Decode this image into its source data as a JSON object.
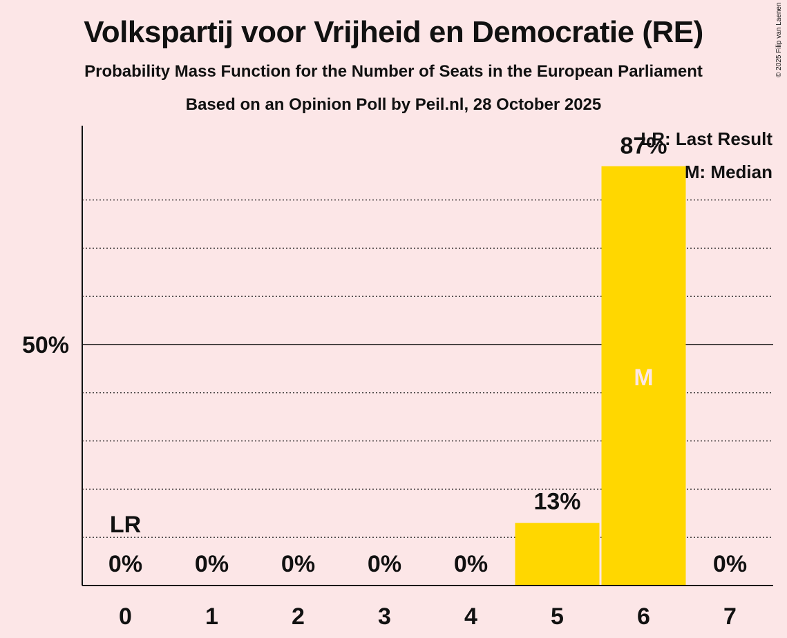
{
  "title": "Volkspartij voor Vrijheid en Democratie (RE)",
  "subtitle": "Probability Mass Function for the Number of Seats in the European Parliament",
  "subtitle2": "Based on an Opinion Poll by Peil.nl, 28 October 2025",
  "copyright": "© 2025 Filip van Laenen",
  "colors": {
    "bar": "#ffd700",
    "background": "#fce6e7",
    "median_text": "#fce6e7"
  },
  "chart_data": {
    "type": "bar",
    "title": "Volkspartij voor Vrijheid en Democratie (RE)",
    "xlabel": "",
    "ylabel": "",
    "categories": [
      "0",
      "1",
      "2",
      "3",
      "4",
      "5",
      "6",
      "7"
    ],
    "values": [
      0,
      0,
      0,
      0,
      0,
      13,
      87,
      0
    ],
    "value_labels": [
      "0%",
      "0%",
      "0%",
      "0%",
      "0%",
      "13%",
      "87%",
      "0%"
    ],
    "ylim": [
      0,
      95
    ],
    "y_ticks": [
      {
        "value": 50,
        "label": "50%"
      }
    ],
    "gridlines": [
      10,
      20,
      30,
      40,
      60,
      70,
      80
    ],
    "last_result": {
      "category": "0",
      "label": "LR"
    },
    "median": {
      "category": "6",
      "label": "M"
    },
    "legend": [
      "LR: Last Result",
      "M: Median"
    ]
  }
}
